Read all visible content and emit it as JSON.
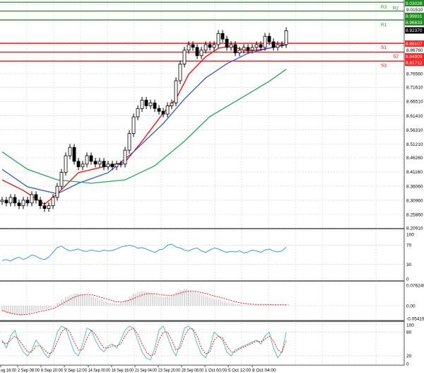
{
  "chart_data": {
    "type": "candlestick",
    "y_ticks": [
      "9.01510",
      "8.86760",
      "8.76560",
      "8.71610",
      "8.66510",
      "8.61410",
      "8.56310",
      "8.51210",
      "8.46260",
      "8.41160",
      "8.36060",
      "8.30960",
      "8.25860",
      "8.20910"
    ],
    "ylim": [
      8.2091,
      9.0303
    ],
    "x_ticks": [
      "ug 16:00",
      "2 Sep 08:00",
      "6 Sep 20:00",
      "9 Sep 12:00",
      "14 Sep 00:00",
      "16 Sep 16:00",
      "21 Sep 04:00",
      "23 Sep 20:00",
      "28 Sep 08:00",
      "1 Oct 00:00",
      "5 Oct 12:00",
      "8 Oct 04:00"
    ],
    "closes": [
      8.31,
      8.3,
      8.32,
      8.3,
      8.29,
      8.31,
      8.3,
      8.33,
      8.31,
      8.29,
      8.28,
      8.29,
      8.32,
      8.36,
      8.41,
      8.47,
      8.5,
      8.45,
      8.43,
      8.44,
      8.47,
      8.45,
      8.44,
      8.45,
      8.43,
      8.44,
      8.43,
      8.44,
      8.44,
      8.49,
      8.55,
      8.61,
      8.64,
      8.67,
      8.65,
      8.66,
      8.64,
      8.63,
      8.62,
      8.65,
      8.66,
      8.74,
      8.8,
      8.85,
      8.87,
      8.86,
      8.83,
      8.85,
      8.87,
      8.86,
      8.87,
      8.91,
      8.89,
      8.86,
      8.87,
      8.84,
      8.85,
      8.86,
      8.85,
      8.86,
      8.87,
      8.86,
      8.9,
      8.88,
      8.86,
      8.87,
      8.87,
      8.92
    ],
    "moving_averages": [
      {
        "color": "#ff0000",
        "points": [
          [
            0,
            8.383
          ],
          [
            5,
            8.345
          ],
          [
            10,
            8.295
          ],
          [
            13,
            8.333
          ],
          [
            18,
            8.409
          ],
          [
            25,
            8.434
          ],
          [
            29,
            8.447
          ],
          [
            33,
            8.522
          ],
          [
            38,
            8.624
          ],
          [
            41,
            8.674
          ],
          [
            44,
            8.763
          ],
          [
            48,
            8.826
          ],
          [
            51,
            8.857
          ],
          [
            54,
            8.864
          ],
          [
            58,
            8.847
          ],
          [
            61,
            8.852
          ],
          [
            67,
            8.869
          ]
        ]
      },
      {
        "color": "#3355dd",
        "points": [
          [
            0,
            8.421
          ],
          [
            6,
            8.358
          ],
          [
            13,
            8.333
          ],
          [
            18,
            8.371
          ],
          [
            25,
            8.409
          ],
          [
            31,
            8.484
          ],
          [
            38,
            8.586
          ],
          [
            43,
            8.674
          ],
          [
            48,
            8.75
          ],
          [
            53,
            8.801
          ],
          [
            58,
            8.839
          ],
          [
            63,
            8.857
          ],
          [
            67,
            8.869
          ]
        ]
      },
      {
        "color": "#22aa55",
        "points": [
          [
            0,
            8.484
          ],
          [
            6,
            8.421
          ],
          [
            13,
            8.383
          ],
          [
            21,
            8.371
          ],
          [
            29,
            8.383
          ],
          [
            36,
            8.434
          ],
          [
            43,
            8.522
          ],
          [
            49,
            8.611
          ],
          [
            56,
            8.674
          ],
          [
            63,
            8.738
          ],
          [
            67,
            8.781
          ]
        ]
      }
    ],
    "levels": [
      {
        "name": "R3",
        "value": "9.03028",
        "color": "#2e8b2e"
      },
      {
        "name": "R2",
        "value": "8.99831",
        "color": "#2e8b2e"
      },
      {
        "name": "R1",
        "value": "8.96633",
        "color": "#2e8b2e"
      },
      {
        "name": "S1",
        "value": "8.88107",
        "color": "#ff0000"
      },
      {
        "name": "S2",
        "value": "8.84909",
        "color": "#ff0000"
      },
      {
        "name": "S3",
        "value": "8.81712",
        "color": "#ff0000"
      }
    ],
    "last_price": "8.92370",
    "rsi": {
      "ticks": [
        "100",
        "70",
        "30",
        "0"
      ],
      "values": [
        38,
        40,
        37,
        42,
        45,
        40,
        44,
        50,
        47,
        42,
        40,
        45,
        55,
        65,
        68,
        62,
        58,
        60,
        62,
        58,
        57,
        60,
        58,
        57,
        60,
        58,
        59,
        62,
        66,
        68,
        70,
        68,
        64,
        65,
        62,
        58,
        55,
        60,
        62,
        70,
        72,
        66,
        64,
        60,
        58,
        62,
        64,
        58,
        55,
        60,
        64,
        62,
        58,
        55,
        57,
        56,
        58,
        54,
        56,
        60,
        58,
        55,
        60,
        62,
        58,
        56,
        58,
        66
      ]
    },
    "macd": {
      "ticks": [
        "0.076249",
        "0.00",
        "-0.054197"
      ],
      "hist": [
        -0.02,
        -0.025,
        -0.028,
        -0.03,
        -0.03,
        -0.028,
        -0.025,
        -0.02,
        -0.018,
        -0.015,
        -0.012,
        -0.008,
        0.0,
        0.01,
        0.02,
        0.03,
        0.035,
        0.04,
        0.04,
        0.038,
        0.035,
        0.03,
        0.025,
        0.02,
        0.015,
        0.01,
        0.008,
        0.006,
        0.01,
        0.02,
        0.03,
        0.04,
        0.045,
        0.048,
        0.045,
        0.04,
        0.035,
        0.03,
        0.028,
        0.03,
        0.035,
        0.045,
        0.05,
        0.055,
        0.05,
        0.045,
        0.04,
        0.035,
        0.03,
        0.025,
        0.022,
        0.02,
        0.015,
        0.01,
        0.008,
        0.005,
        0.004,
        0.003,
        0.002,
        0.002,
        0.003,
        0.002,
        0.004,
        0.003,
        0.002,
        0.002,
        0.002,
        0.004
      ],
      "signal": [
        -0.015,
        -0.02,
        -0.024,
        -0.027,
        -0.029,
        -0.029,
        -0.028,
        -0.025,
        -0.022,
        -0.019,
        -0.016,
        -0.013,
        -0.009,
        -0.003,
        0.005,
        0.013,
        0.021,
        0.028,
        0.033,
        0.036,
        0.037,
        0.036,
        0.033,
        0.029,
        0.025,
        0.021,
        0.017,
        0.013,
        0.012,
        0.014,
        0.018,
        0.024,
        0.03,
        0.035,
        0.039,
        0.04,
        0.039,
        0.037,
        0.035,
        0.034,
        0.034,
        0.037,
        0.041,
        0.045,
        0.048,
        0.048,
        0.046,
        0.043,
        0.04,
        0.036,
        0.032,
        0.029,
        0.025,
        0.021,
        0.017,
        0.013,
        0.01,
        0.008,
        0.006,
        0.005,
        0.004,
        0.004,
        0.004,
        0.004,
        0.003,
        0.003,
        0.003,
        0.003
      ]
    },
    "stochastic": {
      "ticks": [
        "100",
        "80",
        "20",
        "0"
      ],
      "k": [
        60,
        40,
        70,
        85,
        50,
        30,
        20,
        35,
        60,
        45,
        25,
        15,
        40,
        80,
        95,
        90,
        60,
        30,
        20,
        50,
        90,
        85,
        60,
        40,
        30,
        45,
        50,
        40,
        60,
        85,
        95,
        90,
        60,
        30,
        15,
        10,
        40,
        85,
        95,
        70,
        40,
        20,
        50,
        90,
        95,
        85,
        50,
        25,
        15,
        40,
        80,
        70,
        60,
        30,
        20,
        35,
        40,
        45,
        50,
        55,
        60,
        50,
        70,
        80,
        40,
        15,
        30,
        80
      ],
      "d": [
        55,
        50,
        60,
        70,
        60,
        45,
        30,
        30,
        45,
        45,
        35,
        25,
        30,
        55,
        80,
        90,
        80,
        55,
        35,
        35,
        65,
        85,
        75,
        55,
        40,
        40,
        45,
        45,
        50,
        70,
        85,
        90,
        75,
        50,
        30,
        20,
        25,
        60,
        80,
        80,
        60,
        35,
        40,
        70,
        88,
        88,
        70,
        40,
        25,
        30,
        60,
        70,
        65,
        45,
        30,
        30,
        38,
        42,
        47,
        52,
        57,
        55,
        62,
        70,
        58,
        35,
        28,
        60
      ]
    }
  }
}
